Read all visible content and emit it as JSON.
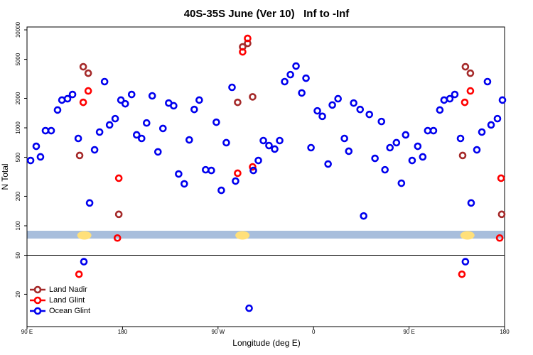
{
  "chart_data": {
    "type": "scatter",
    "title": "40S-35S June (Ver 10)   Inf to -Inf",
    "x_label": "Longitude (deg E)",
    "y_label": "N Total",
    "log_y": true,
    "legend": "bottom-left",
    "xlim": [
      90,
      540
    ],
    "ylim": [
      9.35,
      10700
    ],
    "xticks": [
      {
        "value": 90,
        "label": "90 E"
      },
      180,
      {
        "value": 270,
        "label": "90 W"
      },
      {
        "value": 360,
        "label": "0"
      },
      {
        "value": 450,
        "label": "90 E"
      },
      {
        "value": 540,
        "label": "180"
      }
    ],
    "yticks": [
      10000,
      5000,
      2000,
      1000,
      500,
      200,
      100,
      50,
      20
    ],
    "reference_line": 50,
    "band_range": [
      74,
      89
    ],
    "band_color": "#a8bedc",
    "band_markers_x": [
      144,
      293,
      505
    ],
    "band_marker_color": "#ffe07a",
    "series": [
      {
        "name": "Land Nadir",
        "color": "#a52a2a",
        "x": [
          143.0,
          147.7,
          139.6,
          176.5,
          288.5,
          293.2,
          297.9,
          302.6,
          503.1,
          507.8,
          500.5,
          537.3
        ],
        "values": [
          4200,
          3610,
          522,
          131,
          1820,
          6700,
          7280,
          2070,
          4200,
          3610,
          522,
          131
        ]
      },
      {
        "name": "Land Glint",
        "color": "#ff0000",
        "x": [
          143.0,
          147.7,
          139.0,
          176.5,
          175.2,
          288.5,
          293.2,
          297.9,
          302.6,
          502.5,
          507.8,
          499.8,
          536.7,
          535.4
        ],
        "values": [
          1820,
          2380,
          32,
          306,
          75,
          344,
          5960,
          8180,
          399,
          1820,
          2380,
          32,
          306,
          75
        ]
      },
      {
        "name": "Ocean Glint",
        "color": "#0000ee",
        "x": [
          93.4,
          98.7,
          102.7,
          107.4,
          112.8,
          118.8,
          122.9,
          128.2,
          132.9,
          138.3,
          143.6,
          149.0,
          153.7,
          158.4,
          163.1,
          167.8,
          173.1,
          178.5,
          182.6,
          188.6,
          193.3,
          198.0,
          202.7,
          208.0,
          213.4,
          218.1,
          223.5,
          228.2,
          232.9,
          238.2,
          242.9,
          247.6,
          252.3,
          258.3,
          263.7,
          268.4,
          273.1,
          277.8,
          283.2,
          286.5,
          299.3,
          303.3,
          308.0,
          312.7,
          318.0,
          323.4,
          328.1,
          332.8,
          338.2,
          343.5,
          348.9,
          352.9,
          357.6,
          363.6,
          368.3,
          373.7,
          377.7,
          383.1,
          389.1,
          393.2,
          397.8,
          403.9,
          407.2,
          412.6,
          417.9,
          424.0,
          427.3,
          432.0,
          438.1,
          442.8,
          446.8,
          452.9,
          458.2,
          462.9,
          467.6,
          473.0,
          479.0,
          483.0,
          488.4,
          493.1,
          498.5,
          503.1,
          508.5,
          513.9,
          518.6,
          523.9,
          527.3,
          533.3,
          538.0
        ],
        "values": [
          464,
          648,
          505,
          935,
          935,
          1520,
          1920,
          1980,
          2190,
          779,
          43,
          171,
          596,
          905,
          2960,
          1070,
          1240,
          1920,
          1760,
          2190,
          847,
          779,
          1120,
          2120,
          568,
          985,
          1790,
          1680,
          338,
          268,
          753,
          1540,
          1920,
          373,
          367,
          1140,
          230,
          705,
          2590,
          286,
          14.4,
          367,
          464,
          741,
          659,
          607,
          741,
          2960,
          3490,
          4270,
          2270,
          3210,
          627,
          1490,
          1310,
          427,
          1710,
          1980,
          779,
          577,
          1790,
          1540,
          126,
          1370,
          488,
          1160,
          373,
          627,
          705,
          272,
          847,
          464,
          648,
          505,
          935,
          935,
          1520,
          1920,
          1980,
          2190,
          779,
          43,
          171,
          596,
          905,
          2960,
          1070,
          1240,
          1920
        ]
      }
    ]
  }
}
